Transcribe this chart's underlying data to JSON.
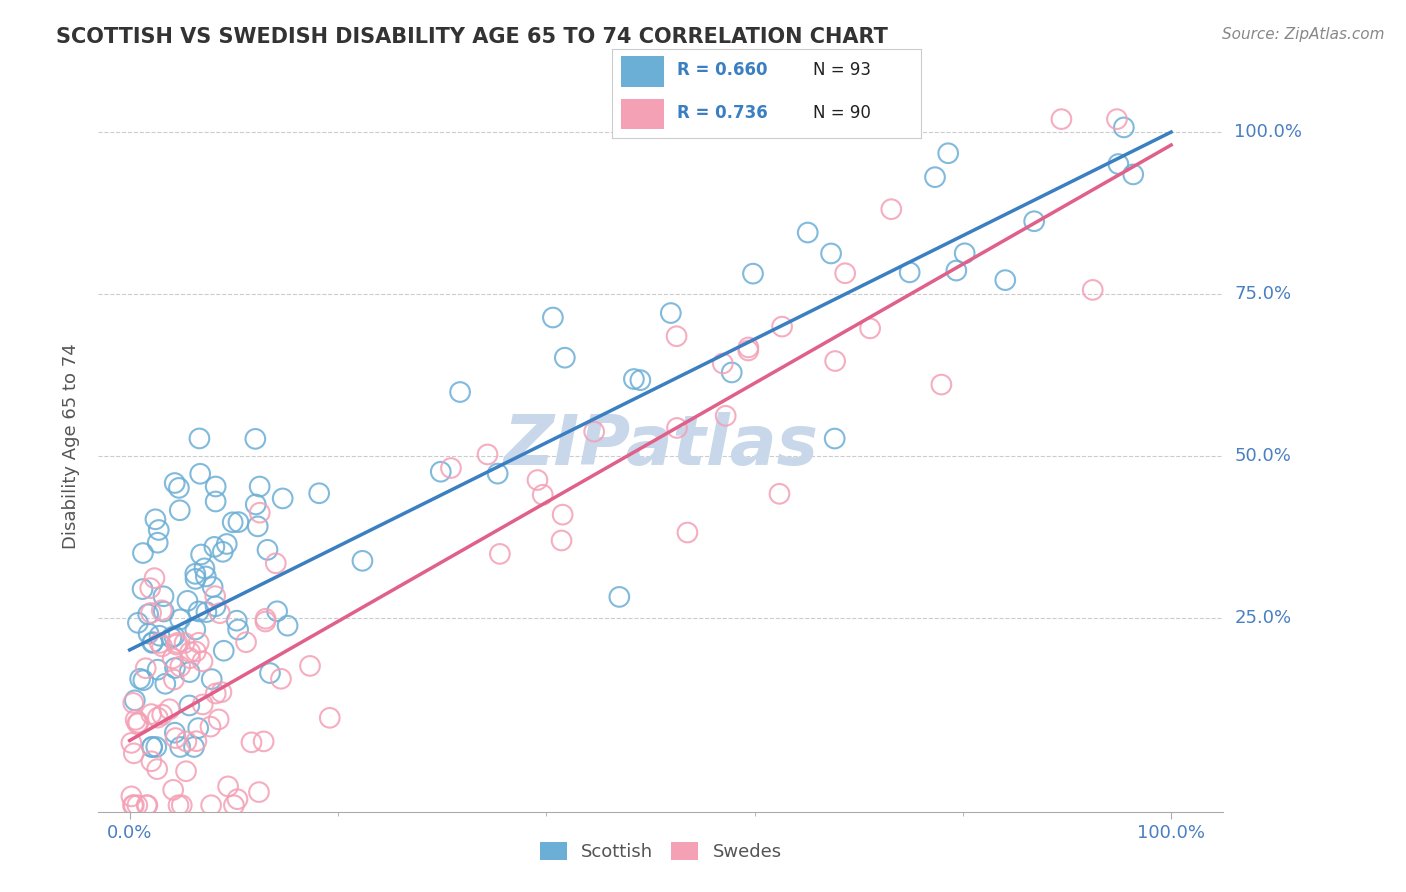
{
  "title": "SCOTTISH VS SWEDISH DISABILITY AGE 65 TO 74 CORRELATION CHART",
  "source": "Source: ZipAtlas.com",
  "ylabel": "Disability Age 65 to 74",
  "scottish_R": 0.66,
  "scottish_N": 93,
  "swedes_R": 0.736,
  "swedes_N": 90,
  "scatter_color_scottish": "#6baed6",
  "scatter_color_swedes": "#f4a0b5",
  "line_color_scottish": "#3a7fc1",
  "line_color_swedes": "#e0608a",
  "right_label_color": "#4a7fc1",
  "watermark_color": "#c8d8ea",
  "background_color": "#ffffff",
  "grid_color": "#cccccc",
  "scottish_line_start_y": 0.2,
  "scottish_line_end_y": 1.0,
  "swedes_line_start_y": 0.06,
  "swedes_line_end_y": 0.98,
  "ytick_vals": [
    0.25,
    0.5,
    0.75,
    1.0
  ],
  "ytick_labels": [
    "25.0%",
    "50.0%",
    "75.0%",
    "100.0%"
  ],
  "xtick_vals": [
    0.0,
    1.0
  ],
  "xtick_labels": [
    "0.0%",
    "100.0%"
  ],
  "xlim": [
    -0.03,
    1.05
  ],
  "ylim": [
    -0.05,
    1.08
  ]
}
